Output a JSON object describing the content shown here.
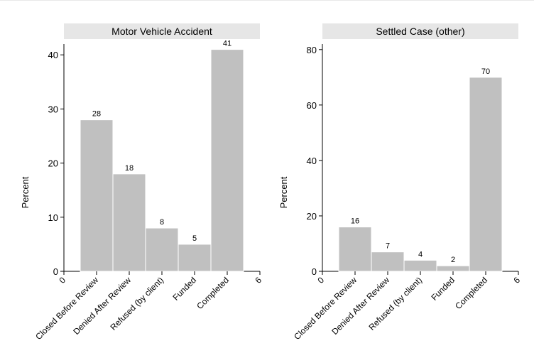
{
  "chart_data": [
    {
      "type": "bar",
      "title": "Motor Vehicle Accident",
      "ylabel": "Percent",
      "xlabel": "",
      "categories": [
        "Closed Before Review",
        "Denied After Review",
        "Refused (by client)",
        "Funded",
        "Completed"
      ],
      "values": [
        28,
        18,
        8,
        5,
        41
      ],
      "data_labels": [
        "28",
        "18",
        "8",
        "5",
        "41"
      ],
      "ylim": [
        0,
        42
      ],
      "yticks": [
        0,
        10,
        20,
        30,
        40
      ],
      "xlim": [
        0,
        6
      ],
      "x_extra_ticks": [
        "0",
        "6"
      ],
      "grid": false,
      "colors": {
        "bar": "#c0c0c0",
        "bar_edge": "#ffffff",
        "title_bg": "#e6e6e6"
      }
    },
    {
      "type": "bar",
      "title": "Settled Case (other)",
      "ylabel": "Percent",
      "xlabel": "",
      "categories": [
        "Closed Before Review",
        "Denied After Review",
        "Refused (by client)",
        "Funded",
        "Completed"
      ],
      "values": [
        16,
        7,
        4,
        2,
        70
      ],
      "data_labels": [
        "16",
        "7",
        "4",
        "2",
        "70"
      ],
      "ylim": [
        0,
        82
      ],
      "yticks": [
        0,
        20,
        40,
        60,
        80
      ],
      "xlim": [
        0,
        6
      ],
      "x_extra_ticks": [
        "0",
        "6"
      ],
      "grid": false,
      "colors": {
        "bar": "#c0c0c0",
        "bar_edge": "#ffffff",
        "title_bg": "#e6e6e6"
      }
    }
  ]
}
